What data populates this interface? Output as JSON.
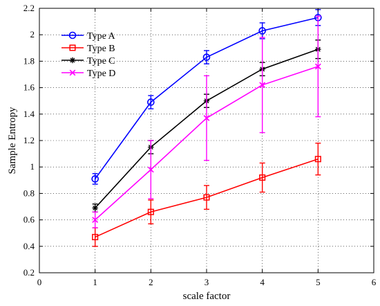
{
  "chart_data": {
    "type": "line",
    "xlabel": "scale factor",
    "ylabel": "Sample Entropy",
    "xlim": [
      0,
      6
    ],
    "ylim": [
      0.2,
      2.2
    ],
    "xticks": [
      "0",
      "1",
      "2",
      "3",
      "4",
      "5",
      "6"
    ],
    "yticks": [
      "0.2",
      "0.4",
      "0.6",
      "0.8",
      "1",
      "1.2",
      "1.4",
      "1.6",
      "1.8",
      "2",
      "2.2"
    ],
    "grid": true,
    "legend_position": "top-left",
    "x": [
      1,
      2,
      3,
      4,
      5
    ],
    "series": [
      {
        "name": "Type A",
        "color": "#0000ff",
        "marker": "circle",
        "values": [
          0.91,
          1.49,
          1.83,
          2.03,
          2.13
        ],
        "errors": [
          0.04,
          0.05,
          0.05,
          0.06,
          0.06
        ]
      },
      {
        "name": "Type B",
        "color": "#ff0000",
        "marker": "square",
        "values": [
          0.47,
          0.66,
          0.77,
          0.92,
          1.06
        ],
        "errors": [
          0.07,
          0.09,
          0.09,
          0.11,
          0.12
        ]
      },
      {
        "name": "Type C",
        "color": "#000000",
        "marker": "star",
        "values": [
          0.69,
          1.15,
          1.5,
          1.74,
          1.89
        ],
        "errors": [
          0.03,
          0.05,
          0.05,
          0.05,
          0.07
        ]
      },
      {
        "name": "Type D",
        "color": "#ff00ff",
        "marker": "x",
        "values": [
          0.6,
          0.98,
          1.37,
          1.62,
          1.76
        ],
        "errors": [
          0.06,
          0.22,
          0.32,
          0.36,
          0.38
        ]
      }
    ]
  }
}
